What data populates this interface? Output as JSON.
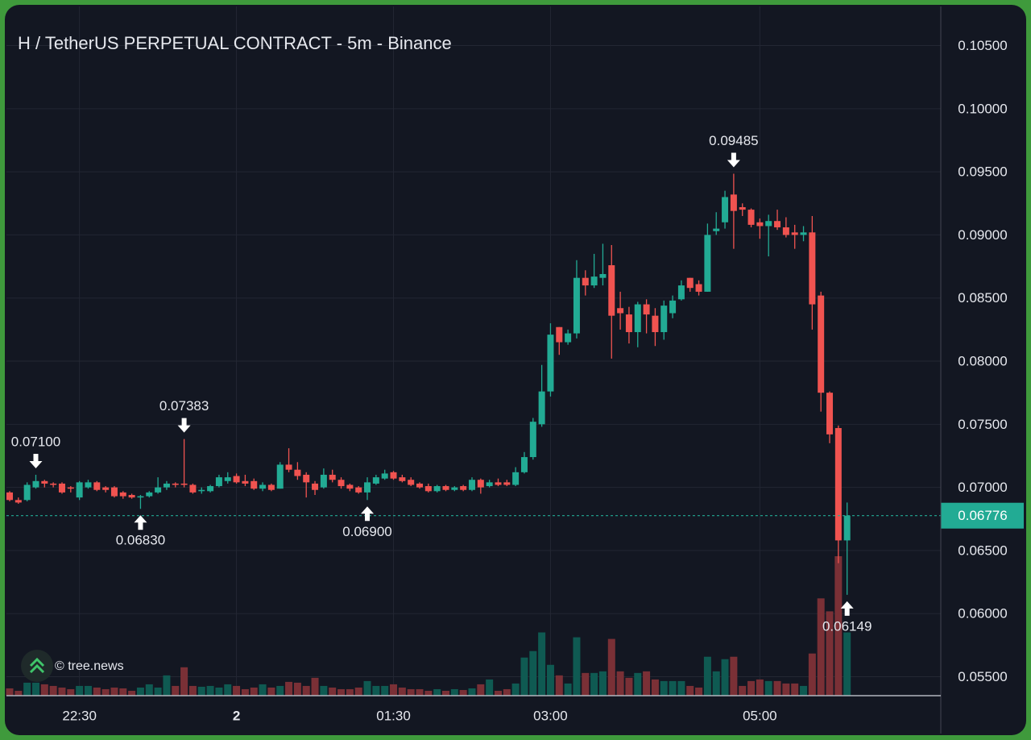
{
  "chart_data": {
    "type": "candlestick",
    "title": "H / TetherUS PERPETUAL CONTRACT - 5m - Binance",
    "watermark": "© tree.news",
    "up_color": "#22ab94",
    "down_color": "#f05350",
    "volume_up_color": "#0f5a52",
    "volume_down_color": "#7a3036",
    "grid": true,
    "x": [
      "21:50",
      "21:55",
      "22:00",
      "22:05",
      "22:10",
      "22:15",
      "22:20",
      "22:25",
      "22:30",
      "22:35",
      "22:40",
      "22:45",
      "22:50",
      "22:55",
      "23:00",
      "23:05",
      "23:10",
      "23:15",
      "23:20",
      "23:25",
      "23:30",
      "23:35",
      "23:40",
      "23:45",
      "23:50",
      "23:55",
      "00:00",
      "00:05",
      "00:10",
      "00:15",
      "00:20",
      "00:25",
      "00:30",
      "00:35",
      "00:40",
      "00:45",
      "00:50",
      "00:55",
      "01:00",
      "01:05",
      "01:10",
      "01:15",
      "01:20",
      "01:25",
      "01:30",
      "01:35",
      "01:40",
      "01:45",
      "01:50",
      "01:55",
      "02:00",
      "02:05",
      "02:10",
      "02:15",
      "02:20",
      "02:25",
      "02:30",
      "02:35",
      "02:40",
      "02:45",
      "02:50",
      "02:55",
      "03:00",
      "03:05",
      "03:10",
      "03:15",
      "03:20",
      "03:25",
      "03:30",
      "03:35",
      "03:40",
      "03:45",
      "03:50",
      "03:55",
      "04:00",
      "04:05",
      "04:10",
      "04:15",
      "04:20",
      "04:25",
      "04:30",
      "04:35",
      "04:40",
      "04:45",
      "04:50",
      "04:55",
      "05:00",
      "05:05",
      "05:10",
      "05:15",
      "05:20",
      "05:25",
      "05:30",
      "05:35",
      "05:40",
      "05:45",
      "05:50"
    ],
    "open": [
      0.0696,
      0.069,
      0.069,
      0.07,
      0.0705,
      0.0703,
      0.0703,
      0.07,
      0.0692,
      0.07,
      0.0704,
      0.07,
      0.07,
      0.0696,
      0.0694,
      0.0692,
      0.0693,
      0.0696,
      0.07,
      0.0703,
      0.0703,
      0.0702,
      0.0697,
      0.0697,
      0.0701,
      0.0705,
      0.0709,
      0.0705,
      0.0705,
      0.0699,
      0.0702,
      0.0699,
      0.0718,
      0.0714,
      0.071,
      0.0703,
      0.07,
      0.071,
      0.0706,
      0.0702,
      0.07,
      0.0696,
      0.0703,
      0.0707,
      0.0712,
      0.0708,
      0.0706,
      0.0703,
      0.0701,
      0.0697,
      0.0701,
      0.0698,
      0.0701,
      0.0698,
      0.0706,
      0.0701,
      0.0704,
      0.0704,
      0.0702,
      0.0712,
      0.0724,
      0.075,
      0.0776,
      0.0827,
      0.0815,
      0.0822,
      0.0866,
      0.086,
      0.0866,
      0.0876,
      0.0842,
      0.0837,
      0.0823,
      0.0845,
      0.0836,
      0.0823,
      0.0838,
      0.0849,
      0.0866,
      0.0861,
      0.0855,
      0.0903,
      0.091,
      0.0932,
      0.0922,
      0.092,
      0.091,
      0.0907,
      0.0911,
      0.0906,
      0.0902,
      0.09,
      0.0902,
      0.0852,
      0.0775,
      0.0747,
      0.0658
    ],
    "high": [
      0.0697,
      0.0692,
      0.0704,
      0.071,
      0.0706,
      0.0704,
      0.0704,
      0.0701,
      0.0705,
      0.0706,
      0.0705,
      0.0701,
      0.0701,
      0.0697,
      0.0695,
      0.0694,
      0.0697,
      0.0708,
      0.0705,
      0.0704,
      0.07383,
      0.0703,
      0.07,
      0.0702,
      0.071,
      0.0712,
      0.0711,
      0.071,
      0.0707,
      0.0704,
      0.0703,
      0.072,
      0.0731,
      0.072,
      0.0712,
      0.0705,
      0.0715,
      0.0714,
      0.0708,
      0.0703,
      0.0701,
      0.0708,
      0.071,
      0.0714,
      0.0713,
      0.071,
      0.0708,
      0.0704,
      0.0703,
      0.0702,
      0.0702,
      0.0701,
      0.0702,
      0.0708,
      0.0707,
      0.0706,
      0.0707,
      0.0706,
      0.0716,
      0.0728,
      0.0755,
      0.0797,
      0.083,
      0.0827,
      0.0825,
      0.088,
      0.0872,
      0.0885,
      0.0893,
      0.0892,
      0.0855,
      0.0843,
      0.0847,
      0.0849,
      0.0842,
      0.0848,
      0.0852,
      0.0864,
      0.0866,
      0.0864,
      0.0909,
      0.0918,
      0.0935,
      0.09485,
      0.0925,
      0.0921,
      0.0913,
      0.0916,
      0.092,
      0.0914,
      0.0908,
      0.0907,
      0.0915,
      0.0855,
      0.0776,
      0.0749,
      0.0688
    ],
    "low": [
      0.0689,
      0.0687,
      0.0689,
      0.0699,
      0.07,
      0.07,
      0.0695,
      0.0696,
      0.069,
      0.0699,
      0.0697,
      0.0696,
      0.0692,
      0.0691,
      0.0691,
      0.0683,
      0.0692,
      0.0695,
      0.0698,
      0.07,
      0.07,
      0.0695,
      0.0695,
      0.0696,
      0.07,
      0.0703,
      0.0703,
      0.0701,
      0.0698,
      0.0697,
      0.0697,
      0.0699,
      0.0712,
      0.0706,
      0.0692,
      0.0694,
      0.0699,
      0.0704,
      0.0699,
      0.0697,
      0.0695,
      0.069,
      0.0702,
      0.0706,
      0.0706,
      0.0704,
      0.0701,
      0.0699,
      0.0696,
      0.0696,
      0.0697,
      0.0697,
      0.0697,
      0.0697,
      0.0695,
      0.07,
      0.0701,
      0.0701,
      0.0701,
      0.0711,
      0.0722,
      0.0748,
      0.0772,
      0.0805,
      0.0813,
      0.0818,
      0.0852,
      0.0858,
      0.086,
      0.0802,
      0.0825,
      0.0814,
      0.0811,
      0.0822,
      0.0812,
      0.0817,
      0.0834,
      0.0848,
      0.0855,
      0.0852,
      0.0855,
      0.09,
      0.0905,
      0.0889,
      0.0915,
      0.0906,
      0.0897,
      0.0883,
      0.0904,
      0.0898,
      0.0889,
      0.0895,
      0.0825,
      0.076,
      0.0735,
      0.064,
      0.06149
    ],
    "close": [
      0.069,
      0.0688,
      0.0702,
      0.0705,
      0.0703,
      0.0702,
      0.0696,
      0.0699,
      0.0704,
      0.0704,
      0.0698,
      0.0698,
      0.0693,
      0.0693,
      0.0692,
      0.0693,
      0.0696,
      0.07,
      0.0703,
      0.0702,
      0.0702,
      0.0696,
      0.0698,
      0.0701,
      0.0708,
      0.0708,
      0.0704,
      0.0703,
      0.0699,
      0.0702,
      0.0698,
      0.0718,
      0.0714,
      0.0709,
      0.0704,
      0.0698,
      0.071,
      0.0706,
      0.0701,
      0.0699,
      0.0696,
      0.0704,
      0.0708,
      0.0711,
      0.0707,
      0.0705,
      0.0702,
      0.07,
      0.0697,
      0.0701,
      0.0698,
      0.07,
      0.0698,
      0.0706,
      0.07,
      0.0704,
      0.0702,
      0.0702,
      0.0712,
      0.0724,
      0.0752,
      0.0776,
      0.0821,
      0.0815,
      0.0822,
      0.0866,
      0.086,
      0.0867,
      0.0869,
      0.0836,
      0.0838,
      0.0823,
      0.0845,
      0.0837,
      0.0823,
      0.0844,
      0.0848,
      0.086,
      0.0858,
      0.0855,
      0.09,
      0.0905,
      0.093,
      0.0919,
      0.092,
      0.0908,
      0.0907,
      0.0911,
      0.0906,
      0.09,
      0.09,
      0.0902,
      0.0845,
      0.0775,
      0.0742,
      0.0658,
      0.06776
    ],
    "volume": [
      9,
      6,
      16,
      16,
      14,
      12,
      10,
      8,
      12,
      12,
      10,
      8,
      10,
      9,
      6,
      10,
      14,
      10,
      25,
      12,
      35,
      12,
      11,
      12,
      10,
      14,
      12,
      8,
      10,
      14,
      10,
      12,
      17,
      16,
      12,
      22,
      12,
      10,
      8,
      8,
      10,
      18,
      12,
      12,
      14,
      10,
      8,
      8,
      6,
      8,
      6,
      8,
      7,
      9,
      14,
      20,
      6,
      8,
      15,
      47,
      55,
      78,
      38,
      25,
      15,
      72,
      28,
      28,
      30,
      70,
      30,
      22,
      28,
      30,
      20,
      18,
      18,
      18,
      12,
      10,
      48,
      30,
      45,
      48,
      12,
      18,
      20,
      18,
      18,
      15,
      15,
      12,
      52,
      120,
      104,
      172,
      78
    ],
    "ylim": [
      0.0535,
      0.1081
    ],
    "yticks": [
      {
        "value": 0.055,
        "label": "0.05500"
      },
      {
        "value": 0.06,
        "label": "0.06000"
      },
      {
        "value": 0.065,
        "label": "0.06500"
      },
      {
        "value": 0.07,
        "label": "0.07000"
      },
      {
        "value": 0.075,
        "label": "0.07500"
      },
      {
        "value": 0.08,
        "label": "0.08000"
      },
      {
        "value": 0.085,
        "label": "0.08500"
      },
      {
        "value": 0.09,
        "label": "0.09000"
      },
      {
        "value": 0.095,
        "label": "0.09500"
      },
      {
        "value": 0.1,
        "label": "0.10000"
      },
      {
        "value": 0.105,
        "label": "0.10500"
      }
    ],
    "xticks": [
      "22:30",
      {
        "value": "00:00",
        "label": "2"
      },
      "01:30",
      "03:00",
      "05:00"
    ],
    "last_price": {
      "value": 0.06776,
      "label": "0.06776"
    },
    "annotations": [
      {
        "x": "22:05",
        "label": "0.07100"
      },
      {
        "x": "23:05",
        "label": "0.06830"
      },
      {
        "x": "23:30",
        "label": "0.07383"
      },
      {
        "x": "01:15",
        "label": "0.06900"
      },
      {
        "x": "04:45",
        "label": "0.09485"
      },
      {
        "x": "05:50",
        "label": "0.06149"
      }
    ]
  }
}
